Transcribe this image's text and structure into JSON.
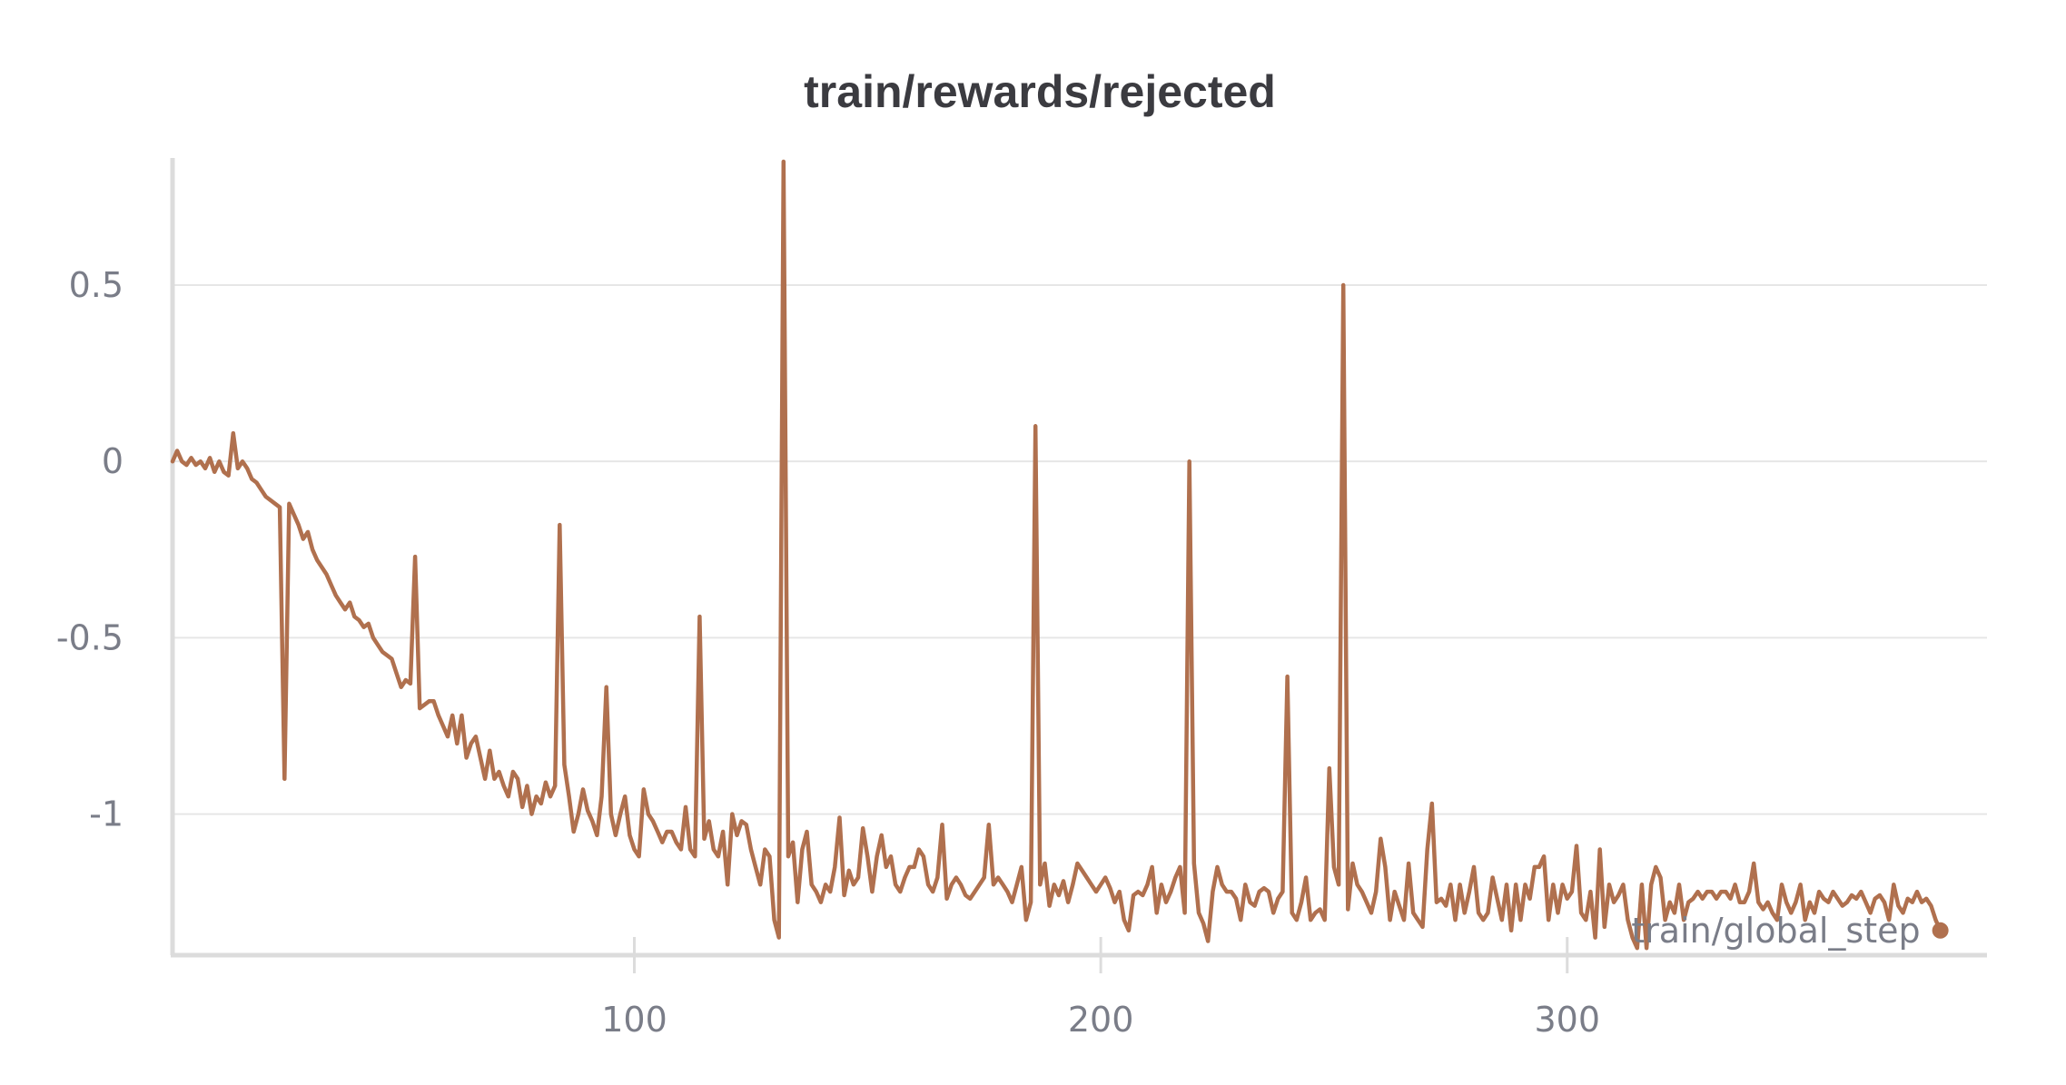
{
  "chart_data": {
    "type": "line",
    "title": "train/rewards/rejected",
    "xlabel": "train/global_step",
    "ylabel": "",
    "xlim": [
      1,
      390
    ],
    "ylim": [
      -1.4,
      0.85
    ],
    "x_ticks": [
      100,
      200,
      300
    ],
    "x_tick_labels": [
      "100",
      "200",
      "300"
    ],
    "y_ticks": [
      0.5,
      0,
      -0.5,
      -1
    ],
    "y_tick_labels": [
      "0.5",
      "0",
      "-0.5",
      "-1"
    ],
    "grid": true,
    "legend": "none",
    "colors": {
      "line": "#b0704e",
      "grid": "#e6e6e6",
      "axis": "#dcdcdc",
      "text": "#7a7d88",
      "title": "#3b3b40"
    },
    "series": [
      {
        "values": [
          0.0,
          0.03,
          0.0,
          -0.01,
          0.01,
          -0.01,
          0.0,
          -0.02,
          0.01,
          -0.03,
          0.0,
          -0.03,
          -0.04,
          0.08,
          -0.02,
          0.0,
          -0.02,
          -0.05,
          -0.06,
          -0.08,
          -0.1,
          -0.11,
          -0.12,
          -0.13,
          -0.9,
          -0.12,
          -0.15,
          -0.18,
          -0.22,
          -0.2,
          -0.25,
          -0.28,
          -0.3,
          -0.32,
          -0.35,
          -0.38,
          -0.4,
          -0.42,
          -0.4,
          -0.44,
          -0.45,
          -0.47,
          -0.46,
          -0.5,
          -0.52,
          -0.54,
          -0.55,
          -0.56,
          -0.6,
          -0.64,
          -0.62,
          -0.63,
          -0.27,
          -0.7,
          -0.69,
          -0.68,
          -0.68,
          -0.72,
          -0.75,
          -0.78,
          -0.72,
          -0.8,
          -0.72,
          -0.84,
          -0.8,
          -0.78,
          -0.84,
          -0.9,
          -0.82,
          -0.9,
          -0.88,
          -0.92,
          -0.95,
          -0.88,
          -0.9,
          -0.98,
          -0.92,
          -1.0,
          -0.95,
          -0.97,
          -0.91,
          -0.95,
          -0.92,
          -0.18,
          -0.86,
          -0.95,
          -1.05,
          -1.0,
          -0.93,
          -0.99,
          -1.02,
          -1.06,
          -0.95,
          -0.64,
          -1.0,
          -1.06,
          -1.0,
          -0.95,
          -1.06,
          -1.1,
          -1.12,
          -0.93,
          -1.0,
          -1.02,
          -1.05,
          -1.08,
          -1.05,
          -1.05,
          -1.08,
          -1.1,
          -0.98,
          -1.1,
          -1.12,
          -0.44,
          -1.07,
          -1.02,
          -1.1,
          -1.12,
          -1.05,
          -1.2,
          -1.0,
          -1.06,
          -1.02,
          -1.03,
          -1.1,
          -1.15,
          -1.2,
          -1.1,
          -1.12,
          -1.3,
          -1.35,
          0.85,
          -1.12,
          -1.08,
          -1.25,
          -1.1,
          -1.05,
          -1.2,
          -1.22,
          -1.25,
          -1.2,
          -1.22,
          -1.15,
          -1.01,
          -1.23,
          -1.16,
          -1.2,
          -1.18,
          -1.04,
          -1.12,
          -1.22,
          -1.12,
          -1.06,
          -1.15,
          -1.12,
          -1.2,
          -1.22,
          -1.18,
          -1.15,
          -1.15,
          -1.1,
          -1.12,
          -1.2,
          -1.22,
          -1.18,
          -1.03,
          -1.24,
          -1.2,
          -1.18,
          -1.2,
          -1.23,
          -1.24,
          -1.22,
          -1.2,
          -1.18,
          -1.03,
          -1.2,
          -1.18,
          -1.2,
          -1.22,
          -1.25,
          -1.2,
          -1.15,
          -1.3,
          -1.25,
          0.1,
          -1.2,
          -1.14,
          -1.26,
          -1.2,
          -1.23,
          -1.19,
          -1.25,
          -1.2,
          -1.14,
          -1.16,
          -1.18,
          -1.2,
          -1.22,
          -1.2,
          -1.18,
          -1.21,
          -1.25,
          -1.22,
          -1.3,
          -1.33,
          -1.23,
          -1.22,
          -1.23,
          -1.2,
          -1.15,
          -1.28,
          -1.2,
          -1.25,
          -1.22,
          -1.18,
          -1.15,
          -1.28,
          0.0,
          -1.14,
          -1.28,
          -1.31,
          -1.36,
          -1.22,
          -1.15,
          -1.2,
          -1.22,
          -1.22,
          -1.24,
          -1.3,
          -1.2,
          -1.25,
          -1.26,
          -1.22,
          -1.21,
          -1.22,
          -1.28,
          -1.24,
          -1.22,
          -0.61,
          -1.28,
          -1.3,
          -1.25,
          -1.18,
          -1.3,
          -1.28,
          -1.27,
          -1.3,
          -0.87,
          -1.15,
          -1.2,
          0.5,
          -1.27,
          -1.14,
          -1.2,
          -1.22,
          -1.25,
          -1.28,
          -1.22,
          -1.07,
          -1.15,
          -1.3,
          -1.22,
          -1.26,
          -1.3,
          -1.14,
          -1.28,
          -1.3,
          -1.32,
          -1.1,
          -0.97,
          -1.25,
          -1.24,
          -1.26,
          -1.2,
          -1.3,
          -1.2,
          -1.28,
          -1.22,
          -1.15,
          -1.28,
          -1.3,
          -1.28,
          -1.18,
          -1.24,
          -1.3,
          -1.2,
          -1.33,
          -1.2,
          -1.3,
          -1.2,
          -1.24,
          -1.15,
          -1.15,
          -1.12,
          -1.3,
          -1.2,
          -1.28,
          -1.2,
          -1.24,
          -1.22,
          -1.09,
          -1.28,
          -1.3,
          -1.22,
          -1.35,
          -1.1,
          -1.32,
          -1.2,
          -1.25,
          -1.23,
          -1.2,
          -1.3,
          -1.35,
          -1.38,
          -1.2,
          -1.38,
          -1.2,
          -1.15,
          -1.18,
          -1.3,
          -1.25,
          -1.28,
          -1.2,
          -1.3,
          -1.25,
          -1.24,
          -1.22,
          -1.24,
          -1.22,
          -1.22,
          -1.24,
          -1.22,
          -1.22,
          -1.24,
          -1.2,
          -1.25,
          -1.25,
          -1.22,
          -1.14,
          -1.25,
          -1.27,
          -1.25,
          -1.28,
          -1.3,
          -1.2,
          -1.25,
          -1.28,
          -1.25,
          -1.2,
          -1.3,
          -1.25,
          -1.28,
          -1.22,
          -1.24,
          -1.25,
          -1.22,
          -1.24,
          -1.26,
          -1.25,
          -1.23,
          -1.24,
          -1.22,
          -1.25,
          -1.28,
          -1.24,
          -1.23,
          -1.25,
          -1.3,
          -1.2,
          -1.26,
          -1.28,
          -1.24,
          -1.25,
          -1.22,
          -1.25,
          -1.24,
          -1.26,
          -1.3,
          -1.33
        ]
      }
    ]
  }
}
